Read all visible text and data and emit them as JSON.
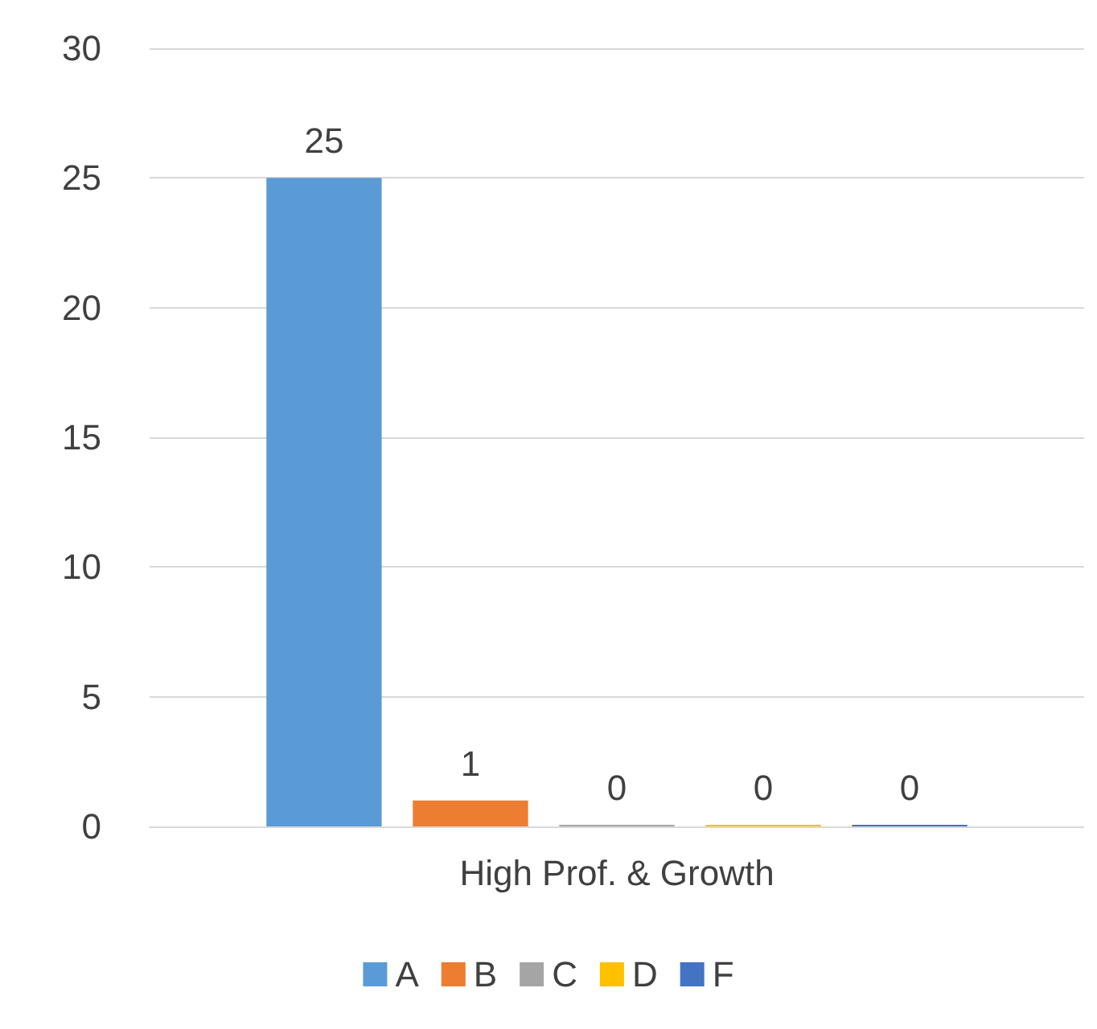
{
  "chart_data": {
    "type": "bar",
    "categories": [
      "High Prof. & Growth"
    ],
    "series": [
      {
        "name": "A",
        "color": "#5b9bd5",
        "values": [
          25
        ]
      },
      {
        "name": "B",
        "color": "#ed7d31",
        "values": [
          1
        ]
      },
      {
        "name": "C",
        "color": "#a5a5a5",
        "values": [
          0
        ]
      },
      {
        "name": "D",
        "color": "#ffc000",
        "values": [
          0
        ]
      },
      {
        "name": "F",
        "color": "#4472c4",
        "values": [
          0
        ]
      }
    ],
    "ylim": [
      0,
      30
    ],
    "yticks": [
      0,
      5,
      10,
      15,
      20,
      25,
      30
    ],
    "grid": "y",
    "legend": "bottom",
    "data_labels": true
  }
}
